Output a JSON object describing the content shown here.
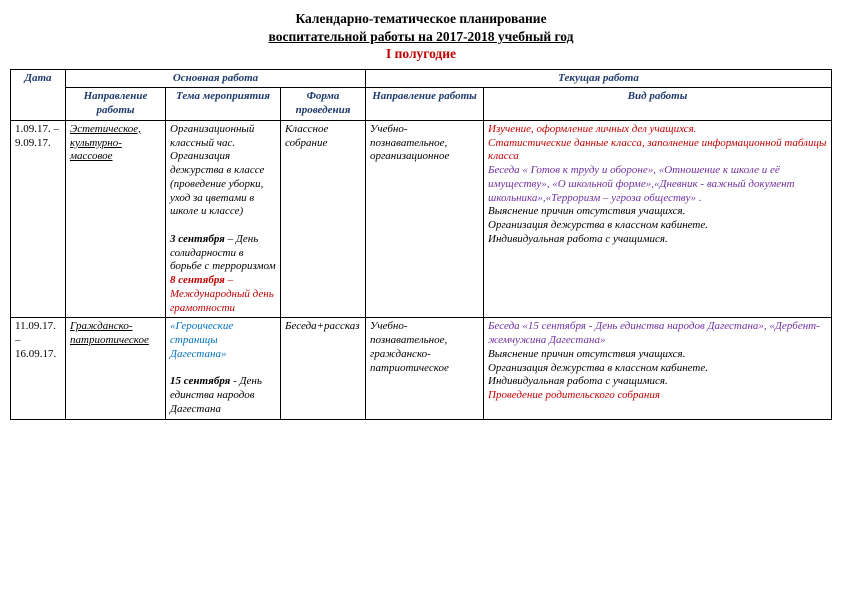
{
  "title": {
    "line1": "Календарно-тематическое планирование",
    "line2": "воспитательной работы на 2017-2018 учебный год",
    "line3": "I полугодие"
  },
  "headers": {
    "date": "Дата",
    "main": "Основная работа",
    "current": "Текущая работа",
    "direction": "Направление работы",
    "theme": "Тема мероприятия",
    "form": "Форма проведения",
    "direction2": "Направление работы",
    "type": "Вид работы"
  },
  "rows": [
    {
      "date": "1.09.17. – 9.09.17.",
      "direction": "Эстетическое, культурно-массовое",
      "theme_p1": "Организационный классный час.",
      "theme_p2": "Организация дежурства в классе (проведение уборки, уход за цветами в школе и классе)",
      "theme_date1": "3 сентября",
      "theme_date1_txt": " – День солидарности в борьбе с терроризмом",
      "theme_date2": "8 сентября",
      "theme_date2_txt": " – Международный день грамотности",
      "form": "Классное собрание",
      "direction2": "Учебно-познавательное, организационное",
      "type_red1": "Изучение, оформление личных дел учащихся.",
      "type_red2": "Статистические данные класса, заполнение информационной таблицы класса",
      "type_purple": "Беседа « Готов к труду и обороне», «Отношение к школе и её имуществу», «О школьной форме»,«Дневник - важный документ школьника»,«Терроризм – угроза обществу» .",
      "type_black": "Выяснение причин отсутствия учащихся.\nОрганизация дежурства в классном кабинете.\nИндивидуальная работа с учащимися."
    },
    {
      "date": "11.09.17. – 16.09.17.",
      "direction": "Гражданско-патриотическое",
      "theme_blue": "«Героические страницы Дагестана»",
      "theme_date1": "15 сентября",
      "theme_date1_txt": " - День единства народов Дагестана",
      "form": "Беседа+рассказ",
      "direction2": "Учебно-познавательное,  гражданско-патриотическое",
      "type_purple": "Беседа «15 сентября - День единства народов Дагестана», «Дербент-жемчужина Дагестана»",
      "type_black": "Выяснение причин отсутствия учащихся.\nОрганизация дежурства в классном кабинете.\nИндивидуальная работа с учащимися.",
      "type_red": "Проведение родительского собрания"
    }
  ]
}
